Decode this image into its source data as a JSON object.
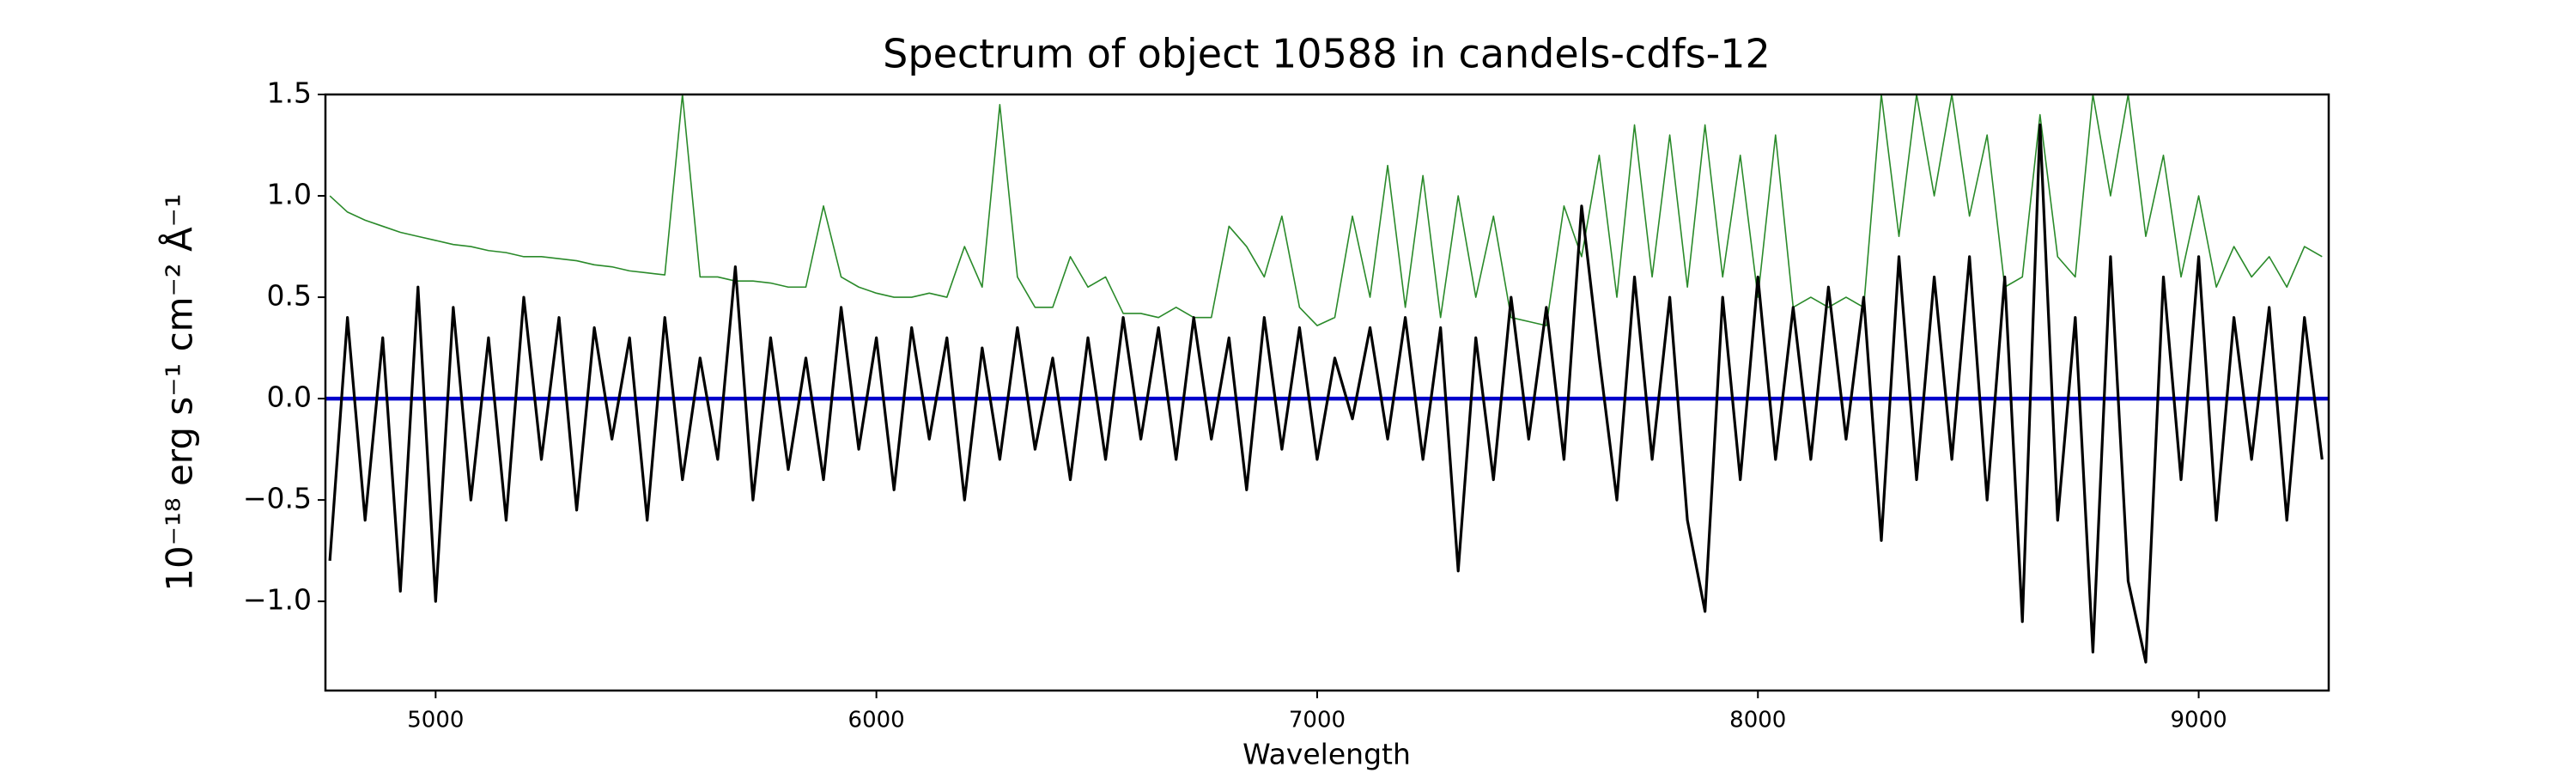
{
  "chart_data": {
    "type": "line",
    "title": "Spectrum of object 10588 in candels-cdfs-12",
    "xlabel": "Wavelength",
    "ylabel": "10⁻¹⁸ erg s⁻¹ cm⁻² Å⁻¹",
    "x": [
      4760,
      4800,
      4840,
      4880,
      4920,
      4960,
      5000,
      5040,
      5080,
      5120,
      5160,
      5200,
      5240,
      5280,
      5320,
      5360,
      5400,
      5440,
      5480,
      5520,
      5560,
      5600,
      5640,
      5680,
      5720,
      5760,
      5800,
      5840,
      5880,
      5920,
      5960,
      6000,
      6040,
      6080,
      6120,
      6160,
      6200,
      6240,
      6280,
      6320,
      6360,
      6400,
      6440,
      6480,
      6520,
      6560,
      6600,
      6640,
      6680,
      6720,
      6760,
      6800,
      6840,
      6880,
      6920,
      6960,
      7000,
      7040,
      7080,
      7120,
      7160,
      7200,
      7240,
      7280,
      7320,
      7360,
      7400,
      7440,
      7480,
      7520,
      7560,
      7600,
      7640,
      7680,
      7720,
      7760,
      7800,
      7840,
      7880,
      7920,
      7960,
      8000,
      8040,
      8080,
      8120,
      8160,
      8200,
      8240,
      8280,
      8320,
      8360,
      8400,
      8440,
      8480,
      8520,
      8560,
      8600,
      8640,
      8680,
      8720,
      8760,
      8800,
      8840,
      8880,
      8920,
      8960,
      9000,
      9040,
      9080,
      9120,
      9160,
      9200,
      9240,
      9280
    ],
    "series": [
      {
        "color": "#2a8a2a",
        "width": 1.6,
        "values": [
          1.0,
          0.92,
          0.88,
          0.85,
          0.82,
          0.8,
          0.78,
          0.76,
          0.75,
          0.73,
          0.72,
          0.7,
          0.7,
          0.69,
          0.68,
          0.66,
          0.65,
          0.63,
          0.62,
          0.61,
          1.5,
          0.6,
          0.6,
          0.58,
          0.58,
          0.57,
          0.55,
          0.55,
          0.95,
          0.6,
          0.55,
          0.52,
          0.5,
          0.5,
          0.52,
          0.5,
          0.75,
          0.55,
          1.45,
          0.6,
          0.45,
          0.45,
          0.7,
          0.55,
          0.6,
          0.42,
          0.42,
          0.4,
          0.45,
          0.4,
          0.4,
          0.85,
          0.75,
          0.6,
          0.9,
          0.45,
          0.36,
          0.4,
          0.9,
          0.5,
          1.15,
          0.45,
          1.1,
          0.4,
          1.0,
          0.5,
          0.9,
          0.4,
          0.38,
          0.36,
          0.95,
          0.7,
          1.2,
          0.5,
          1.35,
          0.6,
          1.3,
          0.55,
          1.35,
          0.6,
          1.2,
          0.5,
          1.3,
          0.45,
          0.5,
          0.45,
          0.5,
          0.45,
          1.5,
          0.8,
          1.5,
          1.0,
          1.5,
          0.9,
          1.3,
          0.55,
          0.6,
          1.4,
          0.7,
          0.6,
          1.5,
          1.0,
          1.5,
          0.8,
          1.2,
          0.6,
          1.0,
          0.55,
          0.75,
          0.6,
          0.7,
          0.55,
          0.75,
          0.7
        ]
      },
      {
        "color": "#0000cc",
        "width": 4.5,
        "x": [
          4750,
          9295
        ],
        "values": [
          0,
          0
        ]
      },
      {
        "color": "#000000",
        "width": 3.2,
        "values": [
          -0.8,
          0.4,
          -0.6,
          0.3,
          -0.95,
          0.55,
          -1.0,
          0.45,
          -0.5,
          0.3,
          -0.6,
          0.5,
          -0.3,
          0.4,
          -0.55,
          0.35,
          -0.2,
          0.3,
          -0.6,
          0.4,
          -0.4,
          0.2,
          -0.3,
          0.65,
          -0.5,
          0.3,
          -0.35,
          0.2,
          -0.4,
          0.45,
          -0.25,
          0.3,
          -0.45,
          0.35,
          -0.2,
          0.3,
          -0.5,
          0.25,
          -0.3,
          0.35,
          -0.25,
          0.2,
          -0.4,
          0.3,
          -0.3,
          0.4,
          -0.2,
          0.35,
          -0.3,
          0.4,
          -0.2,
          0.3,
          -0.45,
          0.4,
          -0.25,
          0.35,
          -0.3,
          0.2,
          -0.1,
          0.35,
          -0.2,
          0.4,
          -0.3,
          0.35,
          -0.85,
          0.3,
          -0.4,
          0.5,
          -0.2,
          0.45,
          -0.3,
          0.95,
          0.2,
          -0.5,
          0.6,
          -0.3,
          0.5,
          -0.6,
          -1.05,
          0.5,
          -0.4,
          0.6,
          -0.3,
          0.45,
          -0.3,
          0.55,
          -0.2,
          0.5,
          -0.7,
          0.7,
          -0.4,
          0.6,
          -0.3,
          0.7,
          -0.5,
          0.6,
          -1.1,
          1.35,
          -0.6,
          0.4,
          -1.25,
          0.7,
          -0.9,
          -1.3,
          0.6,
          -0.4,
          0.7,
          -0.6,
          0.4,
          -0.3,
          0.45,
          -0.6,
          0.4,
          -0.3
        ]
      }
    ],
    "xlim": [
      4750,
      9295
    ],
    "ylim": [
      -1.44,
      1.5
    ],
    "xticks": [
      5000,
      6000,
      7000,
      8000,
      9000
    ],
    "yticks": [
      {
        "value": -1,
        "label": "−1.0"
      },
      {
        "value": -0.5,
        "label": "−0.5"
      },
      {
        "value": 0,
        "label": "0.0"
      },
      0.5,
      {
        "value": 1,
        "label": "1.0"
      },
      1.5
    ],
    "grid": false
  }
}
